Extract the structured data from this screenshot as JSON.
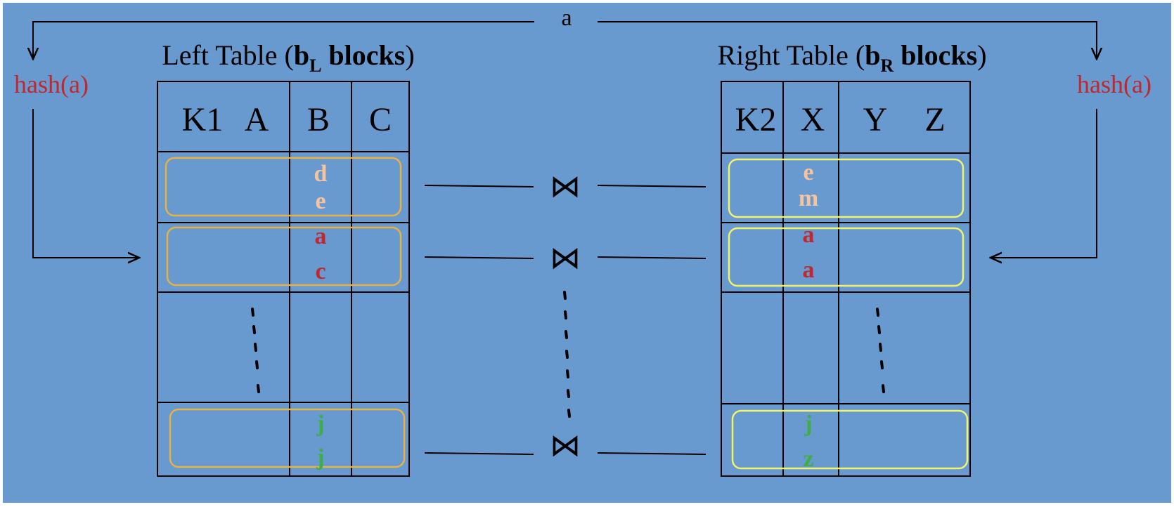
{
  "colors": {
    "background": "#6899cf",
    "line": "#000000",
    "hash_label": "#c0282d",
    "left_block_outline": "#e9b144",
    "right_block_outline": "#f3f36a",
    "value_peach": "#f5c39e",
    "value_red": "#c0282d",
    "value_green": "#3fae4a"
  },
  "top_label": "a",
  "left_hash_label": "hash(a)",
  "right_hash_label": "hash(a)",
  "join_symbol": "⋈",
  "left_table": {
    "title_prefix": "Left Table (",
    "title_b": "b",
    "title_sub": "L",
    "title_blocks": " blocks",
    "title_suffix": ")",
    "headers": [
      "K1",
      "A",
      "B",
      "C"
    ],
    "blocks": [
      {
        "values": [
          {
            "text": "d",
            "color": "peach"
          },
          {
            "text": "e",
            "color": "peach"
          }
        ]
      },
      {
        "values": [
          {
            "text": "a",
            "color": "red"
          },
          {
            "text": "c",
            "color": "red"
          }
        ]
      },
      {
        "values": [
          {
            "text": "j",
            "color": "green"
          },
          {
            "text": "j",
            "color": "green"
          }
        ]
      }
    ]
  },
  "right_table": {
    "title_prefix": "Right Table (",
    "title_b": "b",
    "title_sub": "R",
    "title_blocks": " blocks",
    "title_suffix": ")",
    "headers": [
      "K2",
      "X",
      "Y",
      "Z"
    ],
    "blocks": [
      {
        "values": [
          {
            "text": "e",
            "color": "peach"
          },
          {
            "text": "m",
            "color": "peach"
          }
        ]
      },
      {
        "values": [
          {
            "text": "a",
            "color": "red"
          },
          {
            "text": "a",
            "color": "red"
          }
        ]
      },
      {
        "values": [
          {
            "text": "j",
            "color": "green"
          },
          {
            "text": "z",
            "color": "green"
          }
        ]
      }
    ]
  }
}
